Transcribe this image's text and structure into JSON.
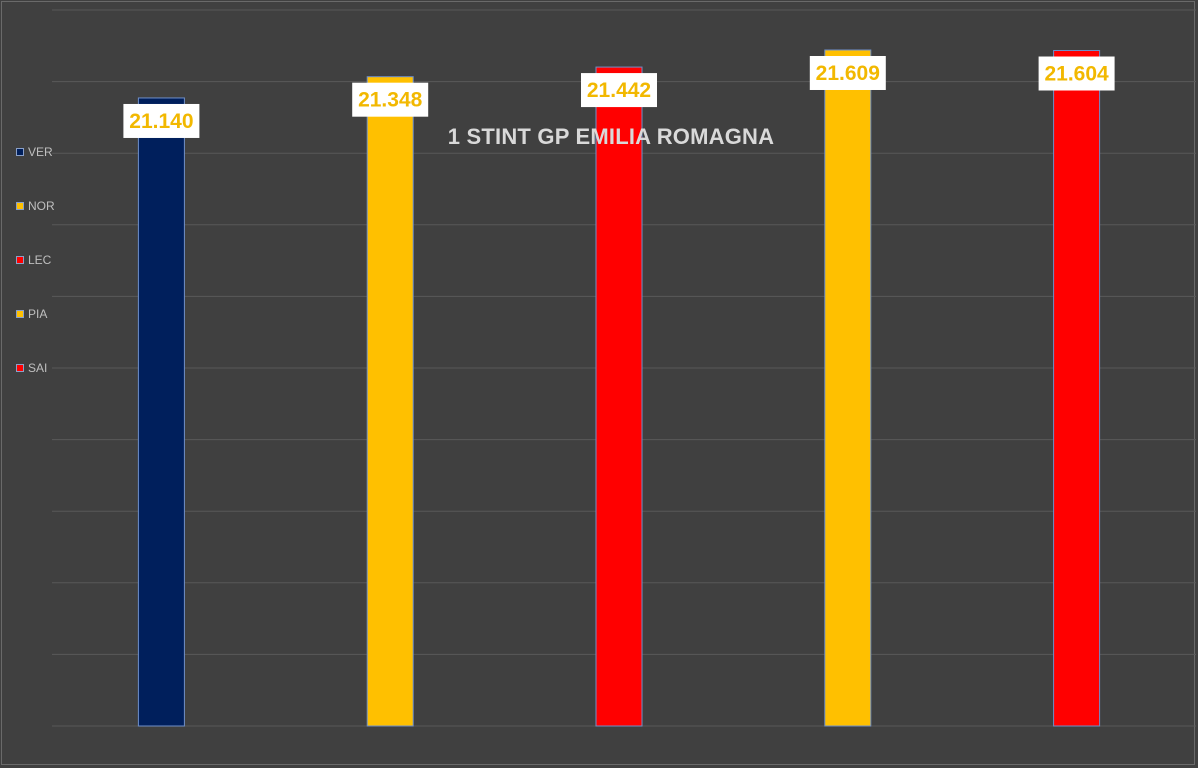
{
  "chart_data": {
    "type": "bar",
    "title": "1 STINT GP EMILIA ROMAGNA",
    "categories": [
      "VER",
      "NOR",
      "LEC",
      "PIA",
      "SAI"
    ],
    "values": [
      21.14,
      21.348,
      21.442,
      21.609,
      21.604
    ],
    "data_labels": [
      "21.140",
      "21.348",
      "21.442",
      "21.609",
      "21.604"
    ],
    "colors": [
      "#001f5c",
      "#ffc000",
      "#ff0000",
      "#ffc000",
      "#ff0000"
    ],
    "legend": {
      "placement": "left",
      "entries": [
        {
          "label": "VER",
          "color": "#001f5c"
        },
        {
          "label": "NOR",
          "color": "#ffc000"
        },
        {
          "label": "LEC",
          "color": "#ff0000"
        },
        {
          "label": "PIA",
          "color": "#ffc000"
        },
        {
          "label": "SAI",
          "color": "#ff0000"
        }
      ]
    },
    "xlabel": "",
    "ylabel": "",
    "ylim": [
      15.0,
      22.0
    ],
    "grid": true,
    "background": "#404040",
    "label_color": "#f2b800"
  }
}
